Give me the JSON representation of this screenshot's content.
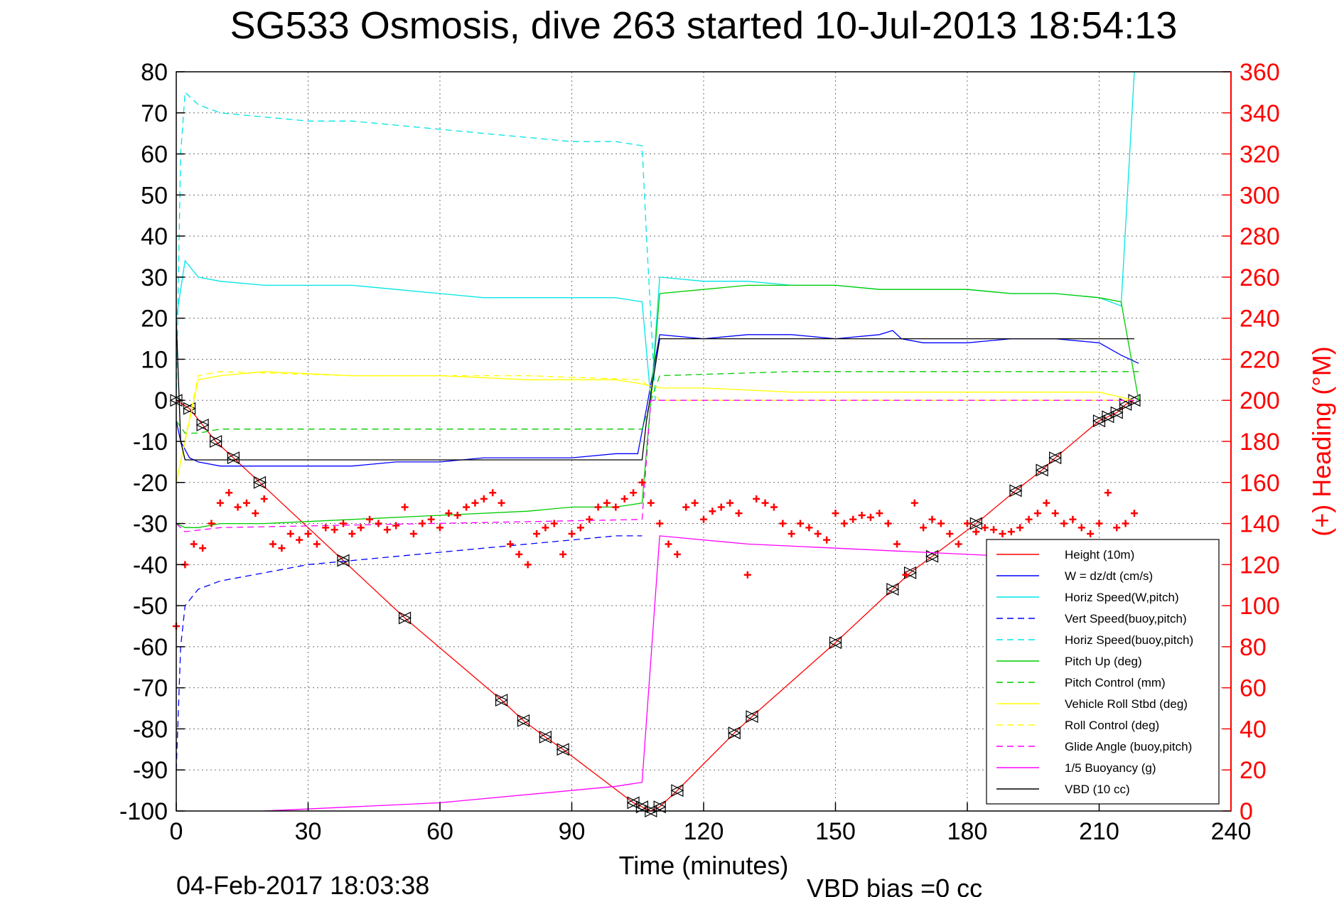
{
  "chart_data": {
    "type": "line",
    "title": "SG533 Osmosis, dive 263 started 10-Jul-2013 18:54:13",
    "xlabel": "Time (minutes)",
    "ylabel": "",
    "ylabel_right": "(+) Heading (°M)",
    "xlim": [
      0,
      240
    ],
    "ylim": [
      -100,
      80
    ],
    "ylim_right": [
      0,
      360
    ],
    "x_ticks": [
      "0",
      "30",
      "60",
      "90",
      "120",
      "150",
      "180",
      "210",
      "240"
    ],
    "y_ticks": [
      "80",
      "70",
      "60",
      "50",
      "40",
      "30",
      "20",
      "10",
      "0",
      "-10",
      "-20",
      "-30",
      "-40",
      "-50",
      "-60",
      "-70",
      "-80",
      "-90",
      "-100"
    ],
    "y_ticks_right": [
      "360",
      "340",
      "320",
      "300",
      "280",
      "260",
      "240",
      "220",
      "200",
      "180",
      "160",
      "140",
      "120",
      "100",
      "80",
      "60",
      "40",
      "20",
      "0"
    ],
    "grid": true,
    "legend_position": "bottom-right",
    "footer_date": "04-Feb-2017 18:03:38",
    "footer_note": "VBD bias =0 cc",
    "series": [
      {
        "name": "Height (10m)",
        "color": "#ff0000",
        "style": "solid",
        "markers": "triangle",
        "x": [
          0,
          3,
          6,
          9,
          13,
          19,
          38,
          52,
          74,
          79,
          84,
          88,
          104,
          106,
          108,
          110,
          114,
          127,
          131,
          150,
          163,
          167,
          172,
          182,
          191,
          197,
          200,
          210,
          212,
          214,
          216,
          218
        ],
        "y": [
          0,
          -2,
          -6,
          -10,
          -14,
          -20,
          -39,
          -53,
          -73,
          -78,
          -82,
          -85,
          -98,
          -99,
          -100,
          -99,
          -95,
          -81,
          -77,
          -59,
          -46,
          -42,
          -38,
          -30,
          -22,
          -17,
          -14,
          -5,
          -4,
          -3,
          -1,
          0
        ]
      },
      {
        "name": "W = dz/dt (cm/s)",
        "color": "#0000ff",
        "style": "solid",
        "x": [
          0,
          1,
          3,
          5,
          10,
          20,
          30,
          40,
          50,
          60,
          70,
          80,
          90,
          100,
          105,
          107,
          110,
          120,
          130,
          140,
          150,
          160,
          163,
          165,
          170,
          180,
          190,
          200,
          210,
          215,
          219
        ],
        "y": [
          -5,
          -10,
          -14,
          -15,
          -16,
          -16,
          -16,
          -16,
          -15,
          -15,
          -14,
          -14,
          -14,
          -13,
          -13,
          -2,
          16,
          15,
          16,
          16,
          15,
          16,
          17,
          15,
          14,
          14,
          15,
          15,
          14,
          11,
          9
        ]
      },
      {
        "name": "Horiz Speed(W,pitch)",
        "color": "#00e5e5",
        "style": "solid",
        "x": [
          0,
          2,
          5,
          10,
          20,
          30,
          40,
          50,
          60,
          70,
          80,
          90,
          100,
          106,
          108,
          110,
          120,
          130,
          140,
          150,
          160,
          170,
          180,
          190,
          200,
          210,
          215,
          218
        ],
        "y": [
          20,
          34,
          30,
          29,
          28,
          28,
          28,
          27,
          26,
          25,
          25,
          25,
          25,
          24,
          0,
          30,
          29,
          29,
          28,
          28,
          27,
          27,
          27,
          26,
          26,
          25,
          23,
          80
        ]
      },
      {
        "name": "Vert Speed(buoy,pitch)",
        "color": "#0000ff",
        "style": "dashed",
        "x": [
          0,
          1,
          2,
          5,
          10,
          20,
          30,
          40,
          50,
          60,
          70,
          80,
          90,
          100,
          106
        ],
        "y": [
          -90,
          -60,
          -50,
          -46,
          -44,
          -42,
          -40,
          -39,
          -38,
          -37,
          -36,
          -35,
          -34,
          -33,
          -33
        ]
      },
      {
        "name": "Horiz Speed(buoy,pitch)",
        "color": "#00e5e5",
        "style": "dashed",
        "x": [
          0,
          1,
          2,
          5,
          10,
          20,
          30,
          40,
          50,
          60,
          70,
          80,
          90,
          100,
          106,
          107,
          109
        ],
        "y": [
          0,
          60,
          75,
          72,
          70,
          69,
          68,
          68,
          67,
          66,
          65,
          64,
          63,
          63,
          62,
          40,
          0
        ]
      },
      {
        "name": "Pitch Up (deg)",
        "color": "#00cc00",
        "style": "solid",
        "x": [
          0,
          2,
          5,
          10,
          20,
          40,
          60,
          80,
          90,
          100,
          106,
          108,
          110,
          120,
          130,
          140,
          150,
          160,
          170,
          180,
          190,
          200,
          210,
          215,
          219
        ],
        "y": [
          -30,
          -31,
          -31,
          -30,
          -30,
          -29,
          -28,
          -27,
          -26,
          -26,
          -25,
          0,
          26,
          27,
          28,
          28,
          28,
          27,
          27,
          27,
          26,
          26,
          25,
          24,
          0
        ]
      },
      {
        "name": "Pitch Control (mm)",
        "color": "#00cc00",
        "style": "dashed",
        "x": [
          0,
          2,
          5,
          10,
          20,
          60,
          100,
          106,
          108,
          110,
          140,
          180,
          210,
          219
        ],
        "y": [
          -5,
          -8,
          -8,
          -7,
          -7,
          -7,
          -7,
          -7,
          0,
          6,
          7,
          7,
          7,
          7
        ]
      },
      {
        "name": "Vehicle Roll Stbd (deg)",
        "color": "#ffff00",
        "style": "solid",
        "x": [
          0,
          5,
          10,
          20,
          40,
          60,
          80,
          100,
          106,
          110,
          120,
          140,
          160,
          180,
          200,
          210,
          218
        ],
        "y": [
          -20,
          5,
          6,
          7,
          6,
          6,
          5,
          5,
          4,
          3,
          3,
          2,
          2,
          2,
          2,
          2,
          0
        ]
      },
      {
        "name": "Roll Control (deg)",
        "color": "#ffff00",
        "style": "dashed",
        "x": [
          0,
          5,
          10,
          40,
          80,
          106,
          110,
          150,
          218
        ],
        "y": [
          -20,
          6,
          7,
          6,
          6,
          5,
          0,
          0,
          0
        ]
      },
      {
        "name": "Glide Angle (buoy,pitch)",
        "color": "#ff00ff",
        "style": "dashed",
        "x": [
          0,
          2,
          10,
          106,
          108,
          110,
          218
        ],
        "y": [
          -30,
          -32,
          -31,
          -29,
          0,
          0,
          0
        ]
      },
      {
        "name": "1/5 Buoyancy (g)",
        "color": "#ff00ff",
        "style": "solid",
        "x": [
          20,
          60,
          100,
          106,
          110,
          130,
          150,
          170,
          190,
          218
        ],
        "y": [
          -100,
          -98,
          -94,
          -93,
          -33,
          -35,
          -36,
          -37,
          -38,
          -38
        ]
      },
      {
        "name": "VBD (10 cc)",
        "color": "#000000",
        "style": "solid",
        "x": [
          0,
          1,
          2,
          106,
          107,
          110,
          218
        ],
        "y": [
          20,
          -10,
          -14.5,
          -14.5,
          -5,
          15,
          15
        ]
      },
      {
        "name": "(+) Heading",
        "axis": "right",
        "color": "#ff0000",
        "style": "markers",
        "marker": "+",
        "x": [
          0,
          2,
          4,
          6,
          8,
          10,
          12,
          14,
          16,
          18,
          20,
          22,
          24,
          26,
          28,
          30,
          32,
          34,
          36,
          38,
          40,
          42,
          44,
          46,
          48,
          50,
          52,
          54,
          56,
          58,
          60,
          62,
          64,
          66,
          68,
          70,
          72,
          74,
          76,
          78,
          80,
          82,
          84,
          86,
          88,
          90,
          92,
          94,
          96,
          98,
          100,
          102,
          104,
          106,
          108,
          110,
          112,
          114,
          116,
          118,
          120,
          122,
          124,
          126,
          128,
          130,
          132,
          134,
          136,
          138,
          140,
          142,
          144,
          146,
          148,
          150,
          152,
          154,
          156,
          158,
          160,
          162,
          164,
          166,
          168,
          170,
          172,
          174,
          176,
          178,
          180,
          182,
          184,
          186,
          188,
          190,
          192,
          194,
          196,
          198,
          200,
          202,
          204,
          206,
          208,
          210,
          212,
          214,
          216,
          218
        ],
        "y": [
          90,
          120,
          130,
          128,
          140,
          150,
          155,
          148,
          150,
          145,
          152,
          130,
          128,
          135,
          132,
          135,
          130,
          138,
          137,
          140,
          135,
          138,
          142,
          140,
          137,
          139,
          148,
          135,
          140,
          142,
          138,
          145,
          144,
          148,
          150,
          152,
          155,
          150,
          130,
          125,
          120,
          135,
          138,
          140,
          125,
          135,
          138,
          142,
          148,
          150,
          148,
          152,
          155,
          160,
          150,
          140,
          130,
          125,
          148,
          150,
          142,
          146,
          148,
          150,
          145,
          115,
          152,
          150,
          148,
          140,
          135,
          140,
          138,
          135,
          132,
          145,
          140,
          142,
          144,
          143,
          145,
          140,
          130,
          115,
          150,
          138,
          142,
          140,
          135,
          130,
          140,
          136,
          138,
          137,
          135,
          136,
          138,
          142,
          145,
          150,
          145,
          140,
          142,
          138,
          135,
          140,
          155,
          138,
          140,
          145
        ]
      }
    ]
  }
}
